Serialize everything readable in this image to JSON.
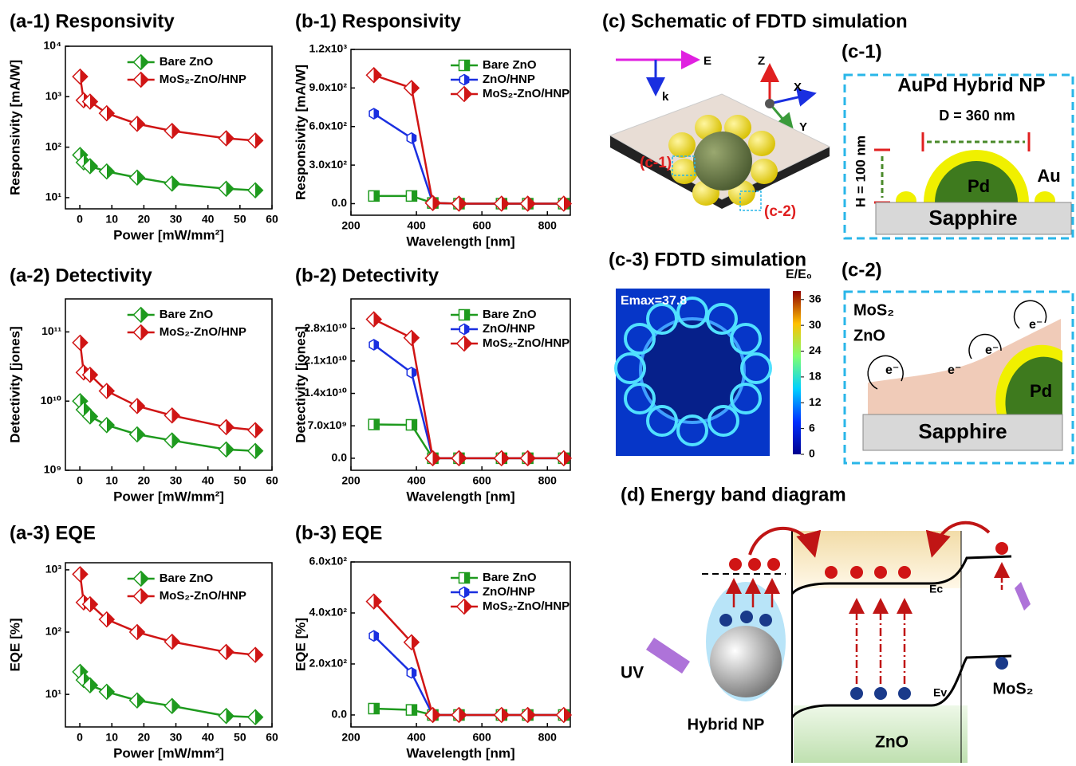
{
  "chart_data": [
    {
      "type": "line",
      "title": "(a-1) Responsivity",
      "xlabel": "Power [mW/mm²]",
      "ylabel": "Responsivity [mA/W]",
      "log_y": true,
      "legend": "upper center",
      "x": [
        0.1,
        1.2,
        3.2,
        8.4,
        17.9,
        28.8,
        45.7,
        54.8
      ],
      "series": [
        {
          "name": "Bare ZnO",
          "color": "#1e9a1e",
          "marker": "diamond",
          "values": [
            70,
            50,
            42,
            33,
            25,
            19,
            15,
            14
          ]
        },
        {
          "name": "MoS₂-ZnO/HNP",
          "color": "#d01515",
          "marker": "diamond",
          "values": [
            2500,
            850,
            800,
            470,
            290,
            210,
            150,
            135
          ]
        }
      ],
      "xlim": [
        -4.5,
        60
      ],
      "xticks": [
        0,
        10,
        20,
        30,
        40,
        50,
        60
      ],
      "ylim": [
        6,
        10000
      ],
      "yticks": [
        {
          "value": 10,
          "label": "10¹"
        },
        {
          "value": 100,
          "label": "10²"
        },
        {
          "value": 1000,
          "label": "10³"
        },
        {
          "value": 10000,
          "label": "10⁴"
        }
      ]
    },
    {
      "type": "line",
      "title": "(a-2) Detectivity",
      "xlabel": "Power [mW/mm²]",
      "ylabel": "Detectivity [jones]",
      "log_y": true,
      "legend": "upper center",
      "x": [
        0.1,
        1.2,
        3.2,
        8.4,
        17.9,
        28.8,
        45.7,
        54.8
      ],
      "series": [
        {
          "name": "Bare ZnO",
          "color": "#1e9a1e",
          "marker": "diamond",
          "values": [
            10000000000,
            7500000000,
            6000000000,
            4500000000,
            3300000000,
            2700000000,
            2000000000,
            1900000000
          ]
        },
        {
          "name": "MoS₂-ZnO/HNP",
          "color": "#d01515",
          "marker": "diamond",
          "values": [
            70000000000,
            26000000000,
            24000000000,
            14000000000,
            8500000000,
            6200000000,
            4200000000,
            3800000000
          ]
        }
      ],
      "xlim": [
        -4.5,
        60
      ],
      "xticks": [
        0,
        10,
        20,
        30,
        40,
        50,
        60
      ],
      "ylim": [
        1000000000,
        300000000000
      ],
      "yticks": [
        {
          "value": 1000000000,
          "label": "10⁹"
        },
        {
          "value": 10000000000,
          "label": "10¹⁰"
        },
        {
          "value": 100000000000,
          "label": "10¹¹"
        }
      ]
    },
    {
      "type": "line",
      "title": "(a-3) EQE",
      "xlabel": "Power [mW/mm²]",
      "ylabel": "EQE [%]",
      "log_y": true,
      "legend": "upper center",
      "x": [
        0.1,
        1.2,
        3.2,
        8.4,
        17.9,
        28.8,
        45.7,
        54.8
      ],
      "series": [
        {
          "name": "Bare ZnO",
          "color": "#1e9a1e",
          "marker": "diamond",
          "values": [
            23,
            17,
            14,
            11,
            8,
            6.5,
            4.5,
            4.3
          ]
        },
        {
          "name": "MoS₂-ZnO/HNP",
          "color": "#d01515",
          "marker": "diamond",
          "values": [
            850,
            300,
            280,
            160,
            100,
            70,
            48,
            43
          ]
        }
      ],
      "xlim": [
        -4.5,
        60
      ],
      "xticks": [
        0,
        10,
        20,
        30,
        40,
        50,
        60
      ],
      "ylim": [
        3,
        1300
      ],
      "yticks": [
        {
          "value": 10,
          "label": "10¹"
        },
        {
          "value": 100,
          "label": "10²"
        },
        {
          "value": 1000,
          "label": "10³"
        }
      ]
    },
    {
      "type": "line",
      "title": "(b-1) Responsivity",
      "xlabel": "Wavelength [nm]",
      "ylabel": "Responsivity [mA/W]",
      "log_y": false,
      "legend": "upper right",
      "x": [
        270,
        385,
        450,
        530,
        660,
        740,
        850
      ],
      "series": [
        {
          "name": "Bare ZnO",
          "color": "#1e9a1e",
          "marker": "square",
          "values": [
            60,
            60,
            5,
            0,
            0,
            0,
            0
          ]
        },
        {
          "name": "ZnO/HNP",
          "color": "#1a2fe0",
          "marker": "hexagon",
          "values": [
            700,
            510,
            5,
            0,
            0,
            0,
            0
          ]
        },
        {
          "name": "MoS₂-ZnO/HNP",
          "color": "#d01515",
          "marker": "diamond",
          "values": [
            1000,
            900,
            5,
            0,
            0,
            0,
            0
          ]
        }
      ],
      "xlim": [
        200,
        870
      ],
      "xticks": [
        200,
        400,
        600,
        800
      ],
      "ylim": [
        -90,
        1200
      ],
      "yticks": [
        {
          "value": 0,
          "label": "0.0"
        },
        {
          "value": 300,
          "label": "3.0x10²"
        },
        {
          "value": 600,
          "label": "6.0x10²"
        },
        {
          "value": 900,
          "label": "9.0x10²"
        },
        {
          "value": 1200,
          "label": "1.2x10³"
        }
      ]
    },
    {
      "type": "line",
      "title": "(b-2) Detectivity",
      "xlabel": "Wavelength [nm]",
      "ylabel": "Detectivity [jones]",
      "log_y": false,
      "legend": "upper right",
      "x": [
        270,
        385,
        450,
        530,
        660,
        740,
        850
      ],
      "series": [
        {
          "name": "Bare ZnO",
          "color": "#1e9a1e",
          "marker": "square",
          "values": [
            7300000000,
            7200000000,
            0,
            0,
            0,
            0,
            0
          ]
        },
        {
          "name": "ZnO/HNP",
          "color": "#1a2fe0",
          "marker": "hexagon",
          "values": [
            24500000000,
            18500000000,
            0,
            0,
            0,
            0,
            0
          ]
        },
        {
          "name": "MoS₂-ZnO/HNP",
          "color": "#d01515",
          "marker": "diamond",
          "values": [
            30000000000,
            26000000000,
            0,
            0,
            0,
            0,
            0
          ]
        }
      ],
      "xlim": [
        200,
        870
      ],
      "xticks": [
        200,
        400,
        600,
        800
      ],
      "ylim": [
        -2600000000,
        34400000000
      ],
      "yticks": [
        {
          "value": 0,
          "label": "0.0"
        },
        {
          "value": 7000000000,
          "label": "7.0x10⁹"
        },
        {
          "value": 14000000000,
          "label": "1.4x10¹⁰"
        },
        {
          "value": 21000000000,
          "label": "2.1x10¹⁰"
        },
        {
          "value": 28000000000,
          "label": "2.8x10¹⁰"
        }
      ]
    },
    {
      "type": "line",
      "title": "(b-3) EQE",
      "xlabel": "Wavelength [nm]",
      "ylabel": "EQE [%]",
      "log_y": false,
      "legend": "upper right",
      "x": [
        270,
        385,
        450,
        530,
        660,
        740,
        850
      ],
      "series": [
        {
          "name": "Bare ZnO",
          "color": "#1e9a1e",
          "marker": "square",
          "values": [
            25,
            20,
            0,
            0,
            0,
            0,
            0
          ]
        },
        {
          "name": "ZnO/HNP",
          "color": "#1a2fe0",
          "marker": "hexagon",
          "values": [
            310,
            165,
            0,
            0,
            0,
            0,
            0
          ]
        },
        {
          "name": "MoS₂-ZnO/HNP",
          "color": "#d01515",
          "marker": "diamond",
          "values": [
            445,
            285,
            0,
            0,
            0,
            0,
            0
          ]
        }
      ],
      "xlim": [
        200,
        870
      ],
      "xticks": [
        200,
        400,
        600,
        800
      ],
      "ylim": [
        -47,
        600
      ],
      "yticks": [
        {
          "value": 0,
          "label": "0.0"
        },
        {
          "value": 200,
          "label": "2.0x10²"
        },
        {
          "value": 400,
          "label": "4.0x10²"
        },
        {
          "value": 600,
          "label": "6.0x10²"
        }
      ]
    }
  ],
  "schematic": {
    "title": "(c) Schematic of FDTD simulation",
    "axis_labels": {
      "e": "E",
      "k": "k",
      "z": "Z",
      "x": "X",
      "y": "Y"
    },
    "callouts": [
      "(c-1)",
      "(c-2)"
    ],
    "c1": {
      "title": "(c-1)",
      "heading": "AuPd Hybrid NP",
      "diameter": "D = 360 nm",
      "height": "H = 100 nm",
      "pd": "Pd",
      "au": "Au",
      "substrate": "Sapphire"
    },
    "c3": {
      "title": "(c-3) FDTD simulation",
      "colorbar_label": "E/E₀",
      "emax": "Emax=37.8",
      "colorbar_lim": [
        0,
        38
      ],
      "colorbar_ticks": [
        0,
        6,
        12,
        18,
        24,
        30,
        36
      ]
    },
    "c2": {
      "title": "(c-2)",
      "mos2": "MoS₂",
      "zno": "ZnO",
      "electrons": [
        "e⁻",
        "e⁻",
        "e⁻",
        "e⁻"
      ],
      "pd": "Pd",
      "substrate": "Sapphire"
    },
    "d": {
      "title": "(d) Energy band diagram",
      "uv": "UV",
      "hybrid": "Hybrid NP",
      "zno": "ZnO",
      "mos2": "MoS₂",
      "ec": "Ec",
      "ev": "Ev"
    }
  }
}
